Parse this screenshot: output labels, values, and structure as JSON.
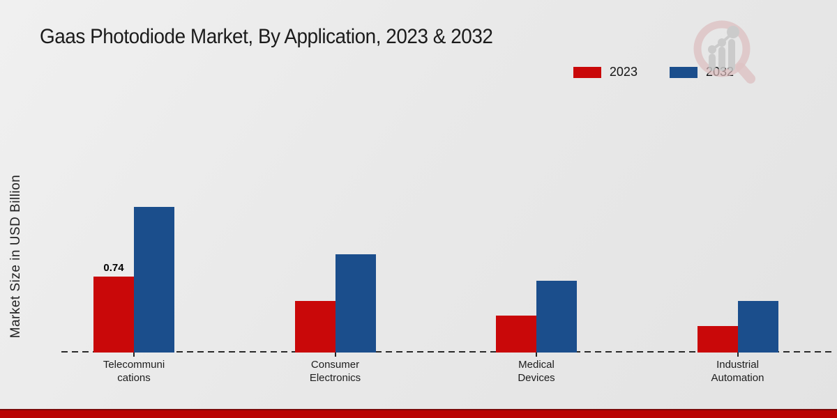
{
  "title": "Gaas Photodiode Market, By Application, 2023 & 2032",
  "y_axis_label": "Market Size in USD Billion",
  "legend": {
    "position": "top-right",
    "items": [
      {
        "label": "2023",
        "color": "#c90809"
      },
      {
        "label": "2032",
        "color": "#1b4e8c"
      }
    ]
  },
  "chart_data": {
    "type": "bar",
    "categories": [
      "Telecommunications",
      "Consumer Electronics",
      "Medical Devices",
      "Industrial Automation"
    ],
    "category_label_lines": [
      [
        "Telecommuni",
        "cations"
      ],
      [
        "Consumer",
        "Electronics"
      ],
      [
        "Medical",
        "Devices"
      ],
      [
        "Industrial",
        "Automation"
      ]
    ],
    "series": [
      {
        "name": "2023",
        "color": "#c90809",
        "values": [
          0.74,
          0.5,
          0.36,
          0.26
        ]
      },
      {
        "name": "2032",
        "color": "#1b4e8c",
        "values": [
          1.42,
          0.96,
          0.7,
          0.5
        ]
      }
    ],
    "data_labels": [
      {
        "series_index": 0,
        "category_index": 0,
        "text": "0.74"
      }
    ],
    "title": "Gaas Photodiode Market, By Application, 2023 & 2032",
    "xlabel": "",
    "ylabel": "Market Size in USD Billion",
    "ylim": [
      0,
      1.6
    ],
    "grid": false,
    "x_axis_style": "dashed-line",
    "legend_position": "top-right"
  },
  "branding": {
    "logo_icon": "magnifier-growth-chart-watermark"
  },
  "footer": {
    "bar_color": "#b90404"
  }
}
